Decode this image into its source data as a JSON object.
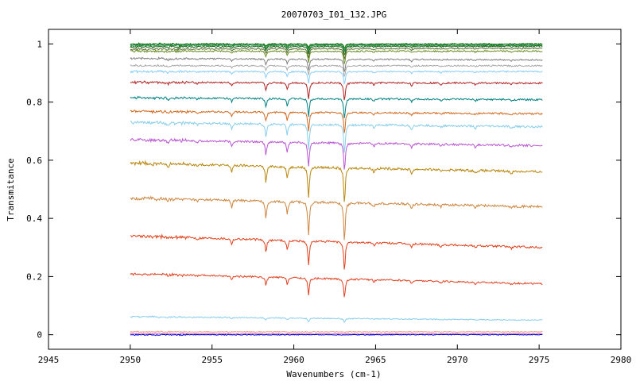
{
  "chart_data": {
    "type": "line",
    "title": "20070703_I01_132.JPG",
    "xlabel": "Wavenumbers (cm-1)",
    "ylabel": "Transmitance",
    "xlim": [
      2945,
      2980
    ],
    "ylim": [
      -0.05,
      1.05
    ],
    "x_ticks": [
      "2945",
      "2950",
      "2955",
      "2960",
      "2965",
      "2970",
      "2975",
      "2980"
    ],
    "y_ticks": [
      "0",
      "0.2",
      "0.4",
      "0.6",
      "0.8",
      "1"
    ],
    "x_range": [
      2950,
      2975.2
    ],
    "grid": false,
    "legend": "none",
    "absorption_lines": [
      {
        "x": 2952.3,
        "relative_depth": 0.08
      },
      {
        "x": 2954.1,
        "relative_depth": 0.06
      },
      {
        "x": 2956.2,
        "relative_depth": 0.18
      },
      {
        "x": 2958.3,
        "relative_depth": 0.45
      },
      {
        "x": 2959.6,
        "relative_depth": 0.35
      },
      {
        "x": 2960.9,
        "relative_depth": 0.85
      },
      {
        "x": 2963.1,
        "relative_depth": 1.0
      },
      {
        "x": 2964.9,
        "relative_depth": 0.12
      },
      {
        "x": 2967.2,
        "relative_depth": 0.14
      },
      {
        "x": 2969.0,
        "relative_depth": 0.08
      },
      {
        "x": 2971.1,
        "relative_depth": 0.09
      },
      {
        "x": 2973.3,
        "relative_depth": 0.07
      }
    ],
    "series": [
      {
        "color": "#006400",
        "baseline_start": 1.0,
        "baseline_end": 1.0,
        "min_at_2963": 0.985
      },
      {
        "color": "#228b22",
        "baseline_start": 0.998,
        "baseline_end": 0.998,
        "min_at_2963": 0.978
      },
      {
        "color": "#2e8b57",
        "baseline_start": 0.995,
        "baseline_end": 0.995,
        "min_at_2963": 0.97
      },
      {
        "color": "#1c6b1c",
        "baseline_start": 0.99,
        "baseline_end": 0.992,
        "min_at_2963": 0.96
      },
      {
        "color": "#556b2f",
        "baseline_start": 0.982,
        "baseline_end": 0.985,
        "min_at_2963": 0.945
      },
      {
        "color": "#6b8e23",
        "baseline_start": 0.975,
        "baseline_end": 0.975,
        "min_at_2963": 0.93
      },
      {
        "color": "#808080",
        "baseline_start": 0.95,
        "baseline_end": 0.945,
        "min_at_2963": 0.9
      },
      {
        "color": "#a9a9a9",
        "baseline_start": 0.925,
        "baseline_end": 0.925,
        "min_at_2963": 0.885
      },
      {
        "color": "#87cefa",
        "baseline_start": 0.905,
        "baseline_end": 0.905,
        "min_at_2963": 0.86
      },
      {
        "color": "#b22222",
        "baseline_start": 0.868,
        "baseline_end": 0.865,
        "min_at_2963": 0.8
      },
      {
        "color": "#008080",
        "baseline_start": 0.815,
        "baseline_end": 0.808,
        "min_at_2963": 0.74
      },
      {
        "color": "#d2691e",
        "baseline_start": 0.768,
        "baseline_end": 0.76,
        "min_at_2963": 0.69
      },
      {
        "color": "#87ceeb",
        "baseline_start": 0.73,
        "baseline_end": 0.715,
        "min_at_2963": 0.62
      },
      {
        "color": "#ba55d3",
        "baseline_start": 0.67,
        "baseline_end": 0.65,
        "min_at_2963": 0.56
      },
      {
        "color": "#b8860b",
        "baseline_start": 0.59,
        "baseline_end": 0.56,
        "min_at_2963": 0.45
      },
      {
        "color": "#cd853f",
        "baseline_start": 0.47,
        "baseline_end": 0.44,
        "min_at_2963": 0.32
      },
      {
        "color": "#e0401a",
        "baseline_start": 0.34,
        "baseline_end": 0.3,
        "min_at_2963": 0.22
      },
      {
        "color": "#e04020",
        "baseline_start": 0.21,
        "baseline_end": 0.175,
        "min_at_2963": 0.125
      },
      {
        "color": "#87ceeb",
        "baseline_start": 0.062,
        "baseline_end": 0.05,
        "min_at_2963": 0.04
      },
      {
        "color": "#e9967a",
        "baseline_start": 0.01,
        "baseline_end": 0.01,
        "min_at_2963": 0.008
      },
      {
        "color": "#da70d6",
        "baseline_start": 0.003,
        "baseline_end": 0.003,
        "min_at_2963": 0.002
      },
      {
        "color": "#0000cd",
        "baseline_start": 0.0,
        "baseline_end": 0.0,
        "min_at_2963": 0.0
      }
    ]
  }
}
